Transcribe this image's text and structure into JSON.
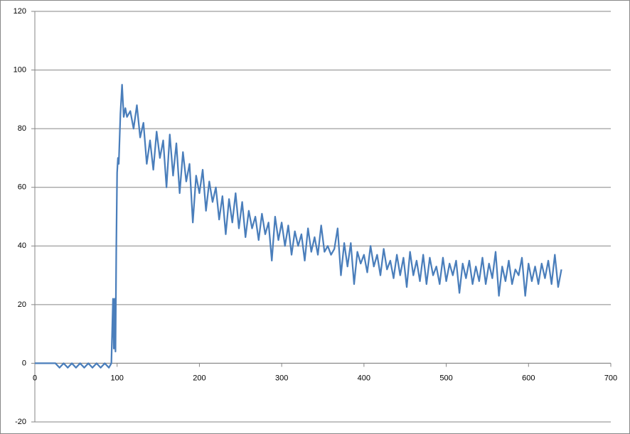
{
  "chart_data": {
    "type": "line",
    "grid": true,
    "xlim": [
      0,
      700
    ],
    "xticks": [
      0,
      100,
      200,
      300,
      400,
      500,
      600,
      700
    ],
    "ylim": [
      -20,
      120
    ],
    "yticks": [
      -20,
      0,
      20,
      40,
      60,
      80,
      100,
      120
    ],
    "x": [
      0,
      10,
      20,
      25,
      30,
      35,
      40,
      45,
      50,
      55,
      60,
      65,
      70,
      75,
      80,
      85,
      90,
      93,
      95,
      96,
      97,
      98,
      99,
      100,
      101,
      102,
      104,
      106,
      108,
      110,
      112,
      116,
      120,
      124,
      128,
      132,
      136,
      140,
      144,
      148,
      152,
      156,
      160,
      164,
      168,
      172,
      176,
      180,
      184,
      188,
      192,
      196,
      200,
      204,
      208,
      212,
      216,
      220,
      224,
      228,
      232,
      236,
      240,
      244,
      248,
      252,
      256,
      260,
      264,
      268,
      272,
      276,
      280,
      284,
      288,
      292,
      296,
      300,
      304,
      308,
      312,
      316,
      320,
      324,
      328,
      332,
      336,
      340,
      344,
      348,
      352,
      356,
      360,
      364,
      368,
      372,
      376,
      380,
      384,
      388,
      392,
      396,
      400,
      404,
      408,
      412,
      416,
      420,
      424,
      428,
      432,
      436,
      440,
      444,
      448,
      452,
      456,
      460,
      464,
      468,
      472,
      476,
      480,
      484,
      488,
      492,
      496,
      500,
      504,
      508,
      512,
      516,
      520,
      524,
      528,
      532,
      536,
      540,
      544,
      548,
      552,
      556,
      560,
      564,
      568,
      572,
      576,
      580,
      584,
      588,
      592,
      596,
      600,
      604,
      608,
      612,
      616,
      620,
      624,
      628,
      632,
      636,
      640
    ],
    "series": [
      {
        "color": "#4a7ebb",
        "values": [
          0,
          0,
          0,
          0,
          -1.5,
          0,
          -1.5,
          0,
          -1.5,
          0,
          -1.5,
          0,
          -1.5,
          0,
          -1.5,
          0,
          -1.5,
          0,
          22,
          5,
          22,
          4,
          40,
          65,
          70,
          68,
          85,
          95,
          84,
          87,
          84,
          86,
          80,
          88,
          77,
          82,
          68,
          76,
          66,
          79,
          70,
          76,
          60,
          78,
          64,
          75,
          58,
          72,
          62,
          68,
          48,
          64,
          58,
          66,
          52,
          62,
          55,
          60,
          49,
          57,
          44,
          56,
          48,
          58,
          46,
          55,
          43,
          52,
          46,
          50,
          42,
          51,
          44,
          48,
          35,
          50,
          42,
          48,
          40,
          47,
          37,
          45,
          40,
          44,
          35,
          46,
          38,
          43,
          37,
          47,
          38,
          40,
          37,
          39,
          46,
          30,
          41,
          33,
          41,
          27,
          38,
          34,
          37,
          31,
          40,
          33,
          37,
          30,
          39,
          32,
          35,
          29,
          37,
          30,
          36,
          26,
          38,
          30,
          35,
          28,
          37,
          27,
          36,
          30,
          33,
          27,
          36,
          28,
          34,
          30,
          35,
          24,
          34,
          29,
          35,
          27,
          33,
          28,
          36,
          27,
          34,
          29,
          38,
          23,
          33,
          28,
          35,
          27,
          32,
          30,
          36,
          23,
          34,
          28,
          33,
          27,
          34,
          29,
          35,
          27,
          37,
          26,
          32
        ]
      }
    ]
  }
}
